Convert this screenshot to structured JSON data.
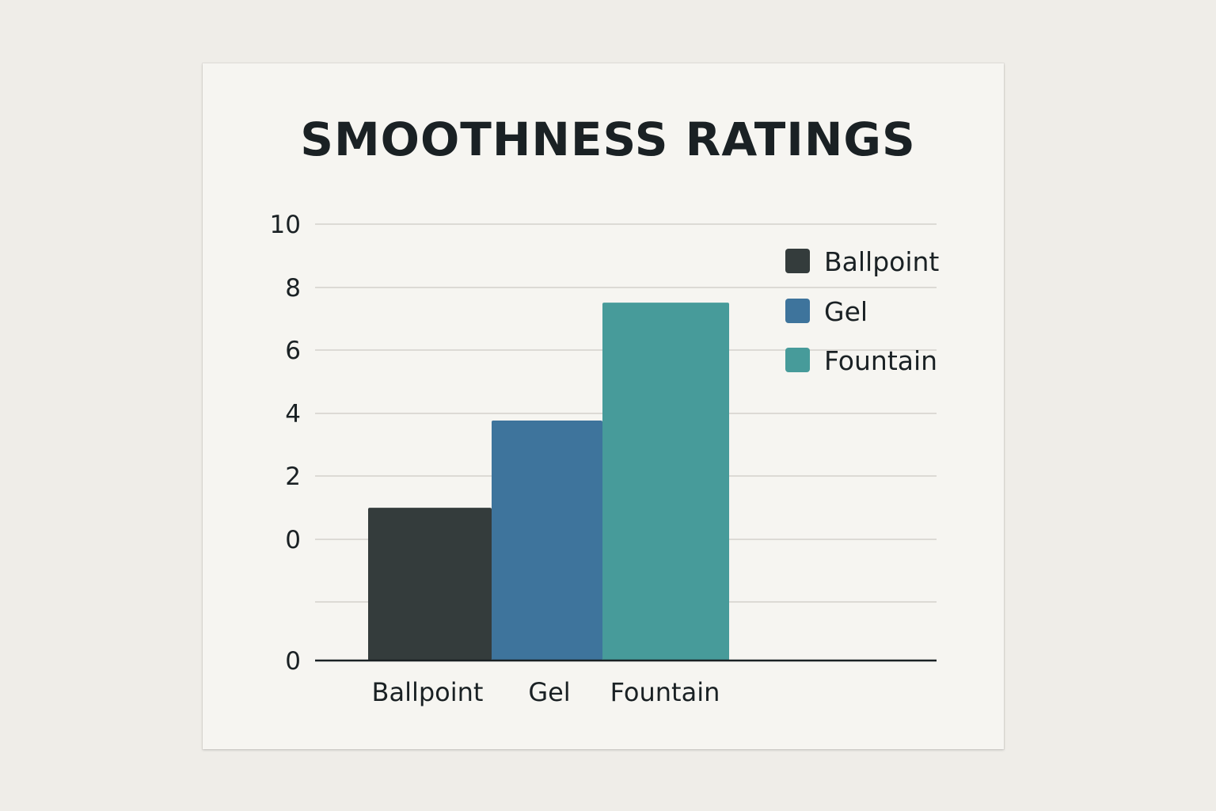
{
  "chart_data": {
    "type": "bar",
    "title": "SMOOTHNESS RATINGS",
    "categories": [
      "Ballpoint",
      "Gel",
      "Fountain"
    ],
    "values": [
      3.5,
      5.5,
      8.2
    ],
    "colors": [
      "#343c3c",
      "#3e749c",
      "#479b9a"
    ],
    "y_tick_labels": [
      "10",
      "8",
      "6",
      "4",
      "2",
      "0",
      "0"
    ],
    "legend": {
      "position": "top-right",
      "entries": [
        {
          "label": "Ballpoint",
          "color": "#343c3c"
        },
        {
          "label": "Gel",
          "color": "#3e749c"
        },
        {
          "label": "Fountain",
          "color": "#479b9a"
        }
      ]
    },
    "grid": true
  }
}
